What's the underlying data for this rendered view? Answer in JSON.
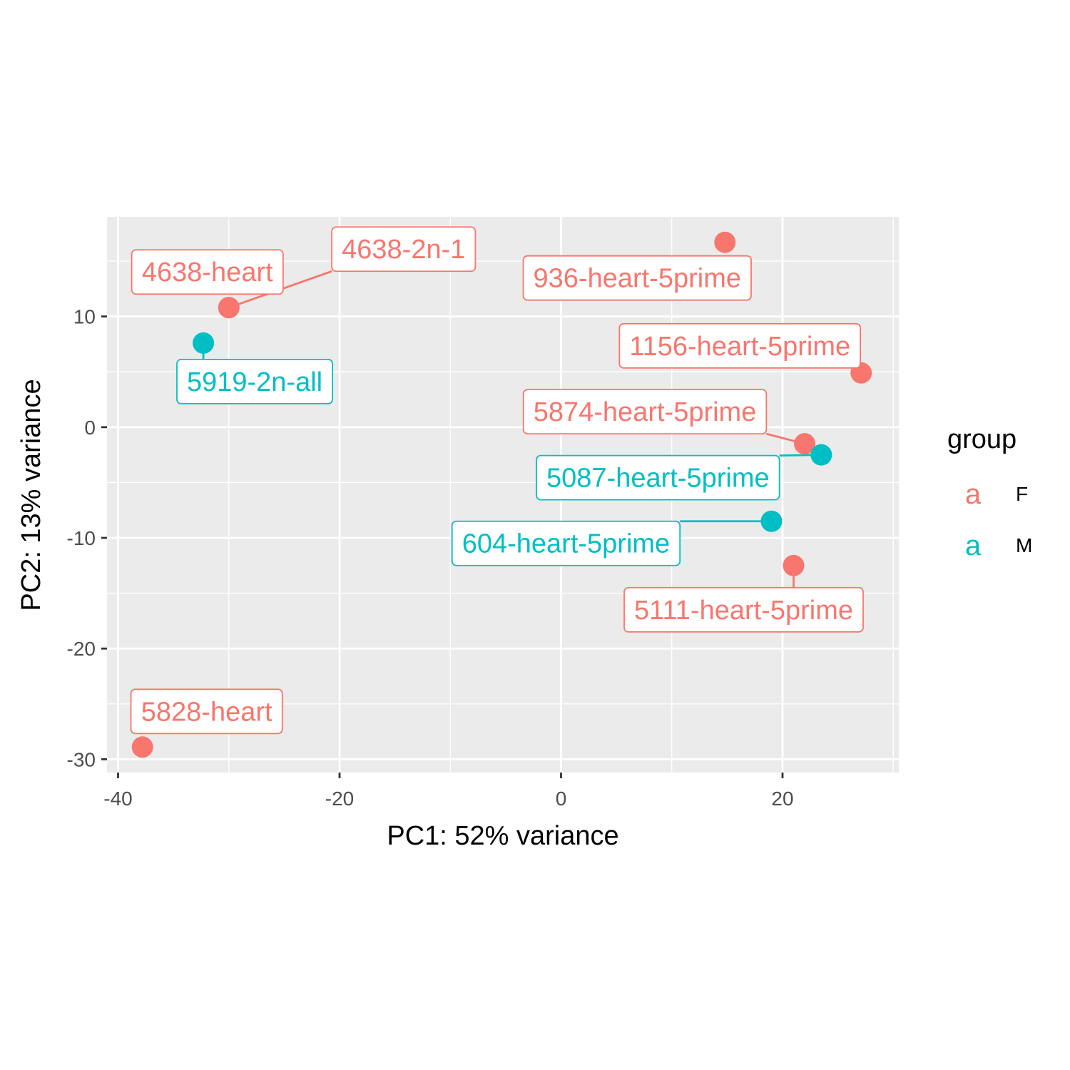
{
  "chart_data": {
    "type": "scatter",
    "xlabel": "PC1: 52% variance",
    "ylabel": "PC2: 13% variance",
    "xlim": [
      -41,
      30.5
    ],
    "ylim": [
      -31.2,
      19
    ],
    "x_ticks": [
      -40,
      -20,
      0,
      20
    ],
    "y_ticks": [
      10,
      0,
      -10,
      -20,
      -30
    ],
    "grid": true,
    "legend": {
      "title": "group",
      "position": "right",
      "key_glyph": "a",
      "entries": [
        {
          "label": "F",
          "color": "#F8766D"
        },
        {
          "label": "M",
          "color": "#00BFC4"
        }
      ]
    },
    "series": [
      {
        "name": "F",
        "color": "#F8766D",
        "points": [
          {
            "label": "4638-heart",
            "x": -30,
            "y": 10.8
          },
          {
            "label": "4638-2n-1",
            "x": -30,
            "y": 10.8
          },
          {
            "label": "936-heart-5prime",
            "x": 14.8,
            "y": 16.7
          },
          {
            "label": "1156-heart-5prime",
            "x": 27.1,
            "y": 4.9
          },
          {
            "label": "5874-heart-5prime",
            "x": 22,
            "y": -1.5
          },
          {
            "label": "5111-heart-5prime",
            "x": 21,
            "y": -12.5
          },
          {
            "label": "5828-heart",
            "x": -37.8,
            "y": -28.9
          }
        ]
      },
      {
        "name": "M",
        "color": "#00BFC4",
        "points": [
          {
            "label": "5919-2n-all",
            "x": -32.3,
            "y": 7.6
          },
          {
            "label": "5087-heart-5prime",
            "x": 23.5,
            "y": -2.5
          },
          {
            "label": "604-heart-5prime",
            "x": 19,
            "y": -8.5
          }
        ]
      }
    ]
  }
}
